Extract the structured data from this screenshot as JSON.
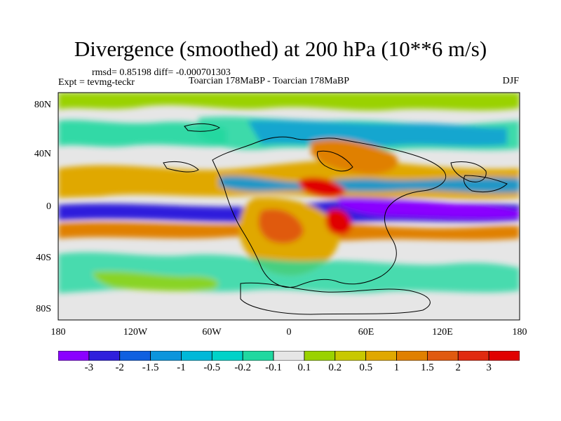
{
  "title": "Divergence (smoothed) at 200 hPa (10**6 m/s)",
  "stats_line": "rmsd= 0.85198 diff= -0.000701303",
  "experiment": "Expt = tevmg-teckr",
  "center_title": "Toarcian 178MaBP - Toarcian 178MaBP",
  "season": "DJF",
  "lat_ticks": [
    "80N",
    "40N",
    "0",
    "40S",
    "80S"
  ],
  "lon_ticks": [
    "180",
    "120W",
    "60W",
    "0",
    "60E",
    "120E",
    "180"
  ],
  "colorbar": {
    "labels": [
      "-3",
      "-2",
      "-1.5",
      "-1",
      "-0.5",
      "-0.2",
      "-0.1",
      "0.1",
      "0.2",
      "0.5",
      "1",
      "1.5",
      "2",
      "3"
    ],
    "colors": [
      "#8a00ff",
      "#2f1fdc",
      "#1060e0",
      "#0c95dc",
      "#00b8d8",
      "#00d2c8",
      "#20d8a0",
      "#e6e6e6",
      "#9ad200",
      "#c8c800",
      "#e0a800",
      "#e08000",
      "#e05a10",
      "#e02a10",
      "#e00000"
    ]
  }
}
